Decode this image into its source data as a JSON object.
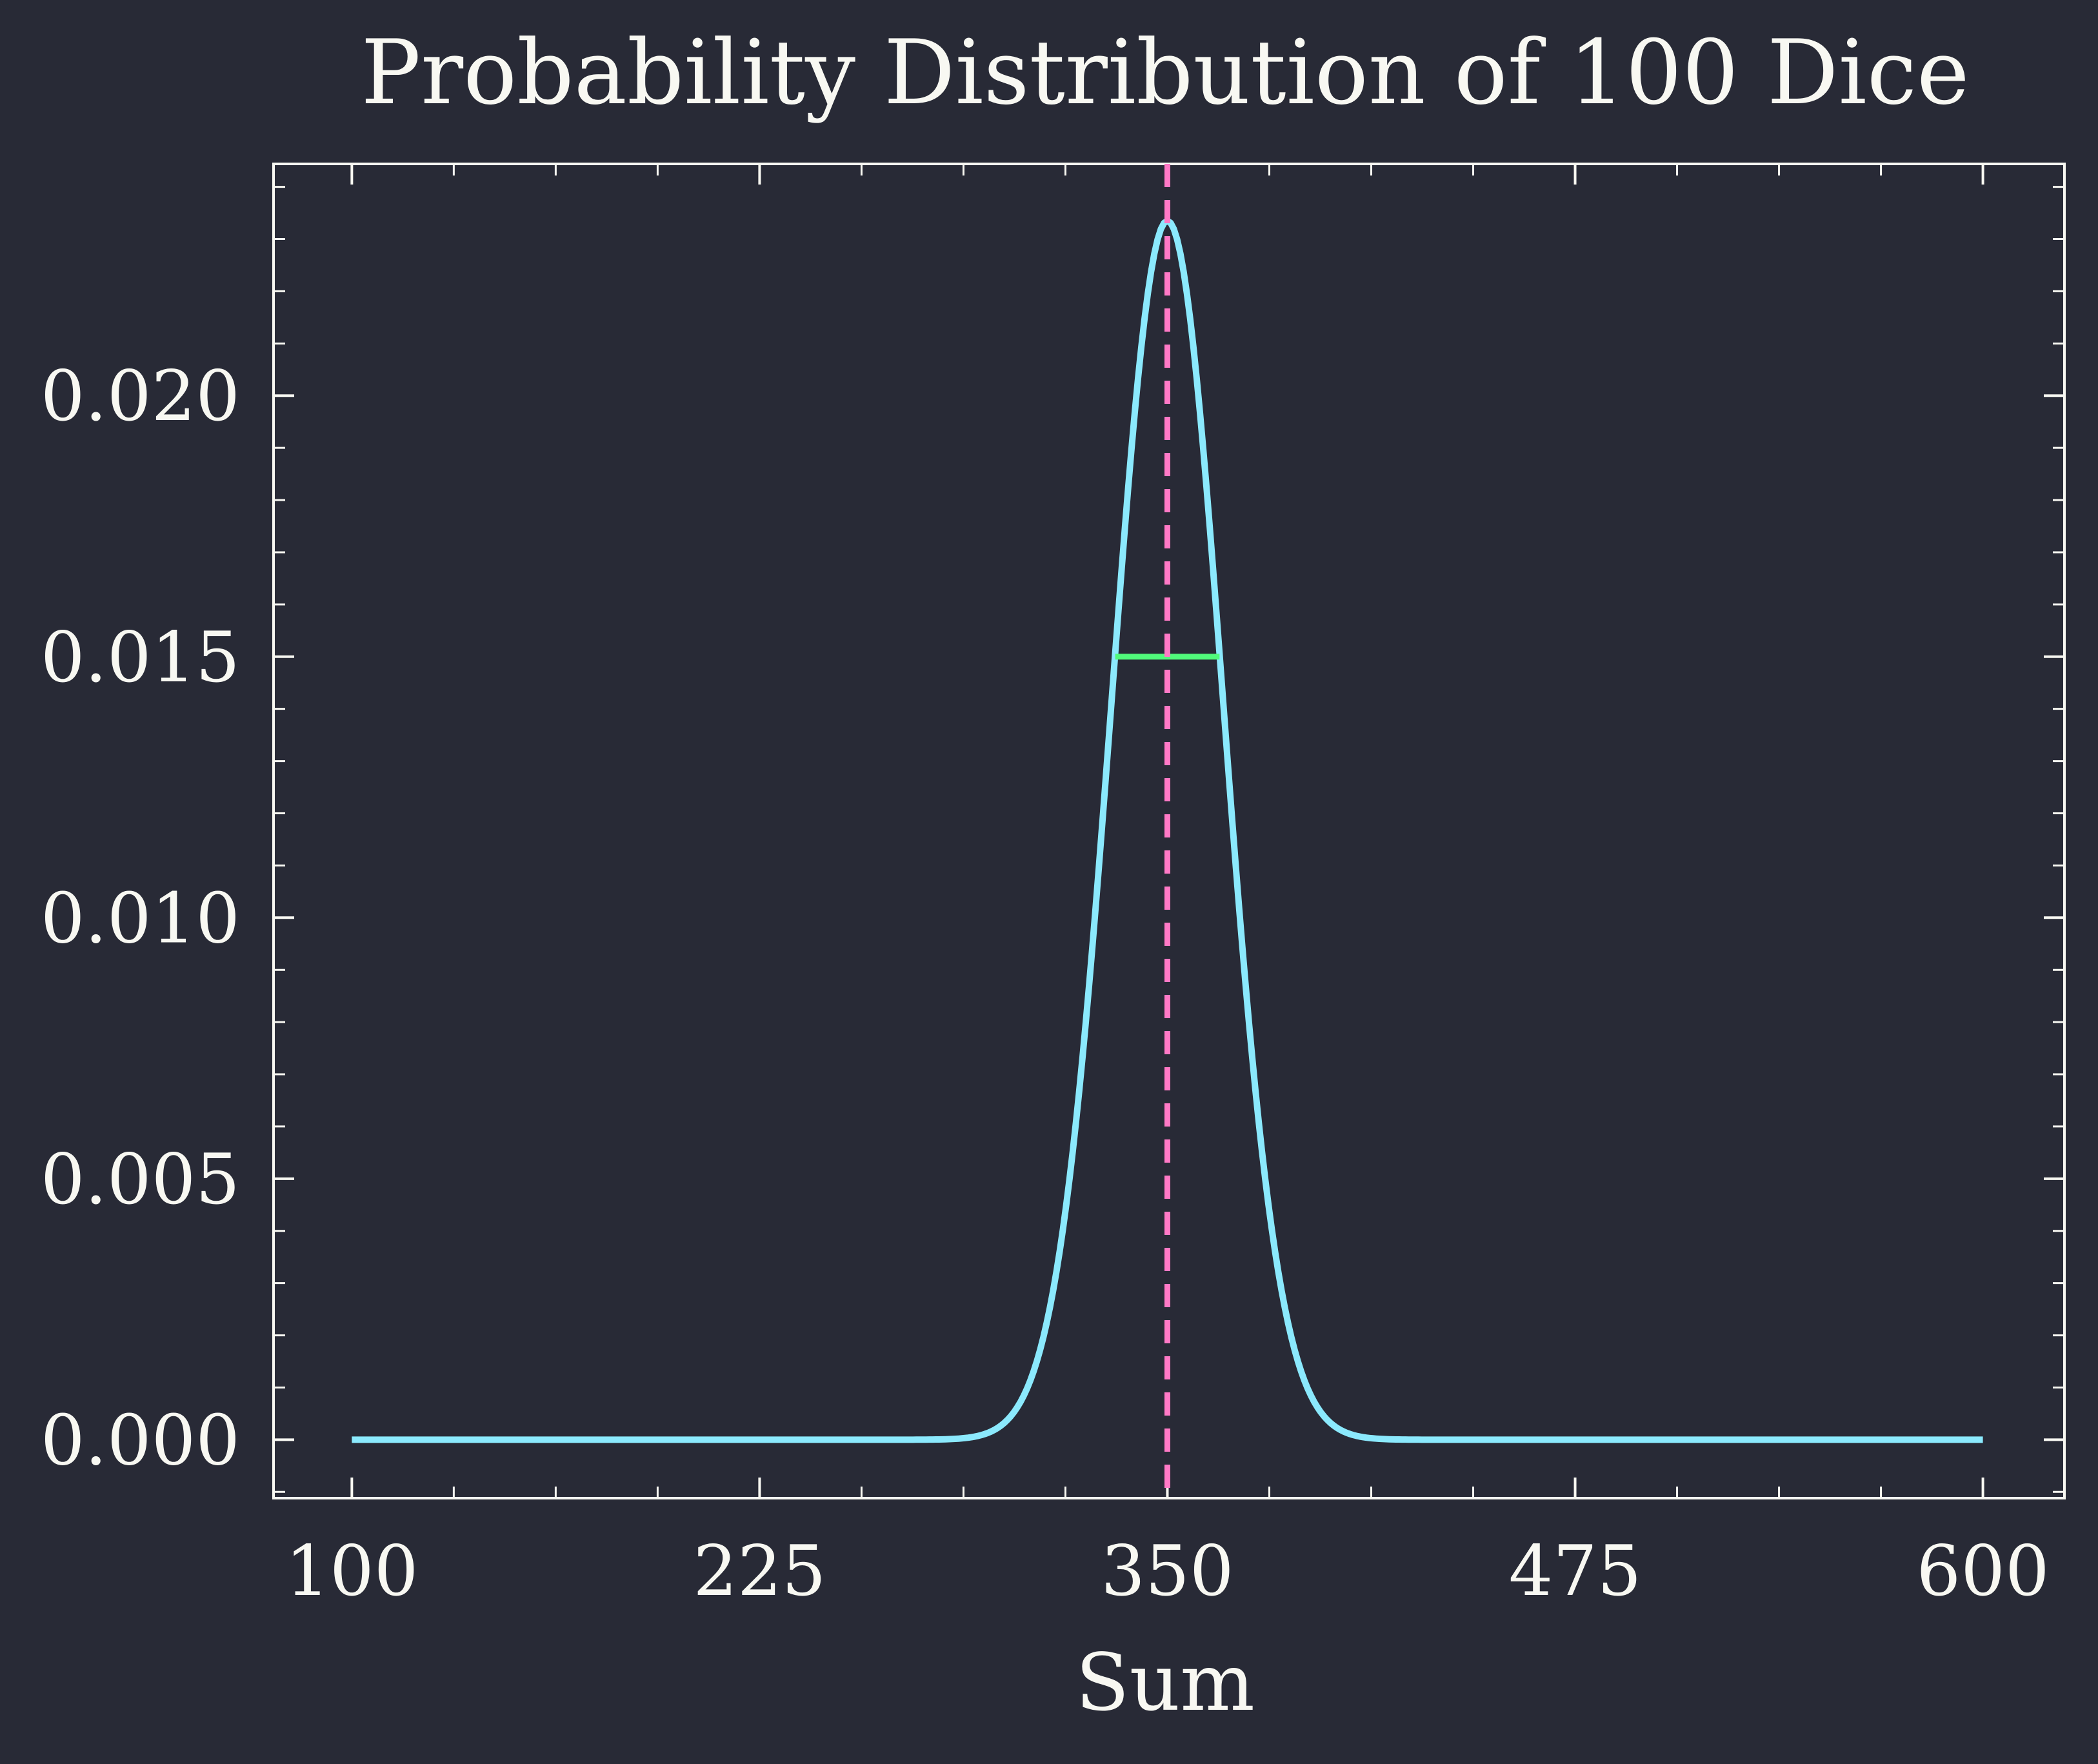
{
  "chart_data": {
    "type": "line",
    "title": "Probability Distribution of 100 Dice",
    "xlabel": "Sum",
    "ylabel": "",
    "xlim": [
      76,
      625
    ],
    "ylim": [
      -0.00112,
      0.02444
    ],
    "x_ticks": [
      100,
      225,
      350,
      475,
      600
    ],
    "x_tick_labels": [
      "100",
      "225",
      "350",
      "475",
      "600"
    ],
    "y_ticks": [
      0.0,
      0.005,
      0.01,
      0.015,
      0.02
    ],
    "y_tick_labels": [
      "0.000",
      "0.005",
      "0.010",
      "0.015",
      "0.020"
    ],
    "x_minor_step": 31.25,
    "y_minor_step": 0.001,
    "grid": false,
    "legend": "none",
    "series": [
      {
        "kind": "distribution",
        "mean": 350,
        "std": 17.08,
        "x_range": [
          100,
          600
        ],
        "peak": 0.02335,
        "color": "#8be9fd"
      }
    ],
    "annotations": {
      "mean_line": {
        "x": 350,
        "color": "#ff79c6",
        "style": "dashed"
      },
      "spread_bar": {
        "x_start": 334,
        "x_end": 366,
        "y": 0.015,
        "color": "#50fa7b"
      }
    },
    "colors": {
      "background": "#282a36",
      "foreground": "#f8f8f2"
    }
  }
}
